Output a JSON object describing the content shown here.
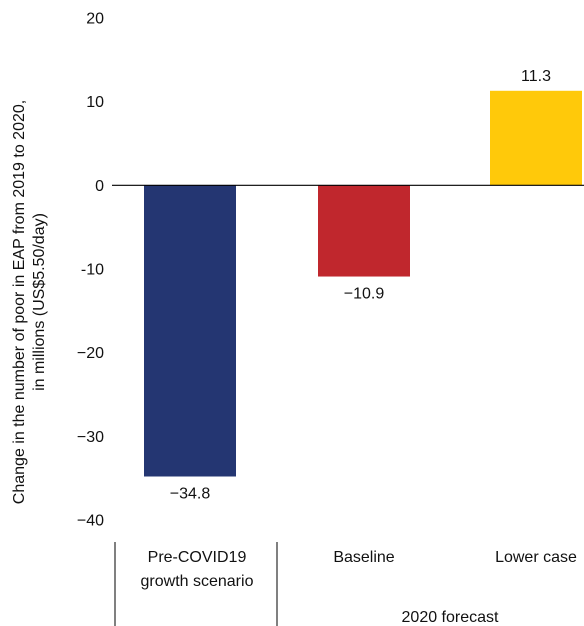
{
  "chart_data": {
    "type": "bar",
    "categories": [
      {
        "lines": [
          "Pre-COVID19",
          "growth scenario"
        ]
      },
      {
        "lines": [
          "Baseline"
        ]
      },
      {
        "lines": [
          "Lower case"
        ]
      }
    ],
    "values": [
      -34.8,
      -10.9,
      11.3
    ],
    "value_labels": [
      "−34.8",
      "−10.9",
      "11.3"
    ],
    "bar_colors": [
      "#243672",
      "#c0272d",
      "#ffc90a"
    ],
    "ylim": [
      -40,
      20
    ],
    "yticks": [
      {
        "value": 20,
        "label": "20"
      },
      {
        "value": 10,
        "label": "10"
      },
      {
        "value": 0,
        "label": "0"
      },
      {
        "value": -10,
        "label": "-10"
      },
      {
        "value": -20,
        "label": "−20"
      },
      {
        "value": -30,
        "label": "−30"
      },
      {
        "value": -40,
        "label": "−40"
      }
    ],
    "ylabel_lines": [
      "Change in the number of poor in EAP from 2019 to 2020,",
      "in millions (US$5.50/day)"
    ],
    "group_label": "2020 forecast",
    "grid": false,
    "legend": "none"
  }
}
